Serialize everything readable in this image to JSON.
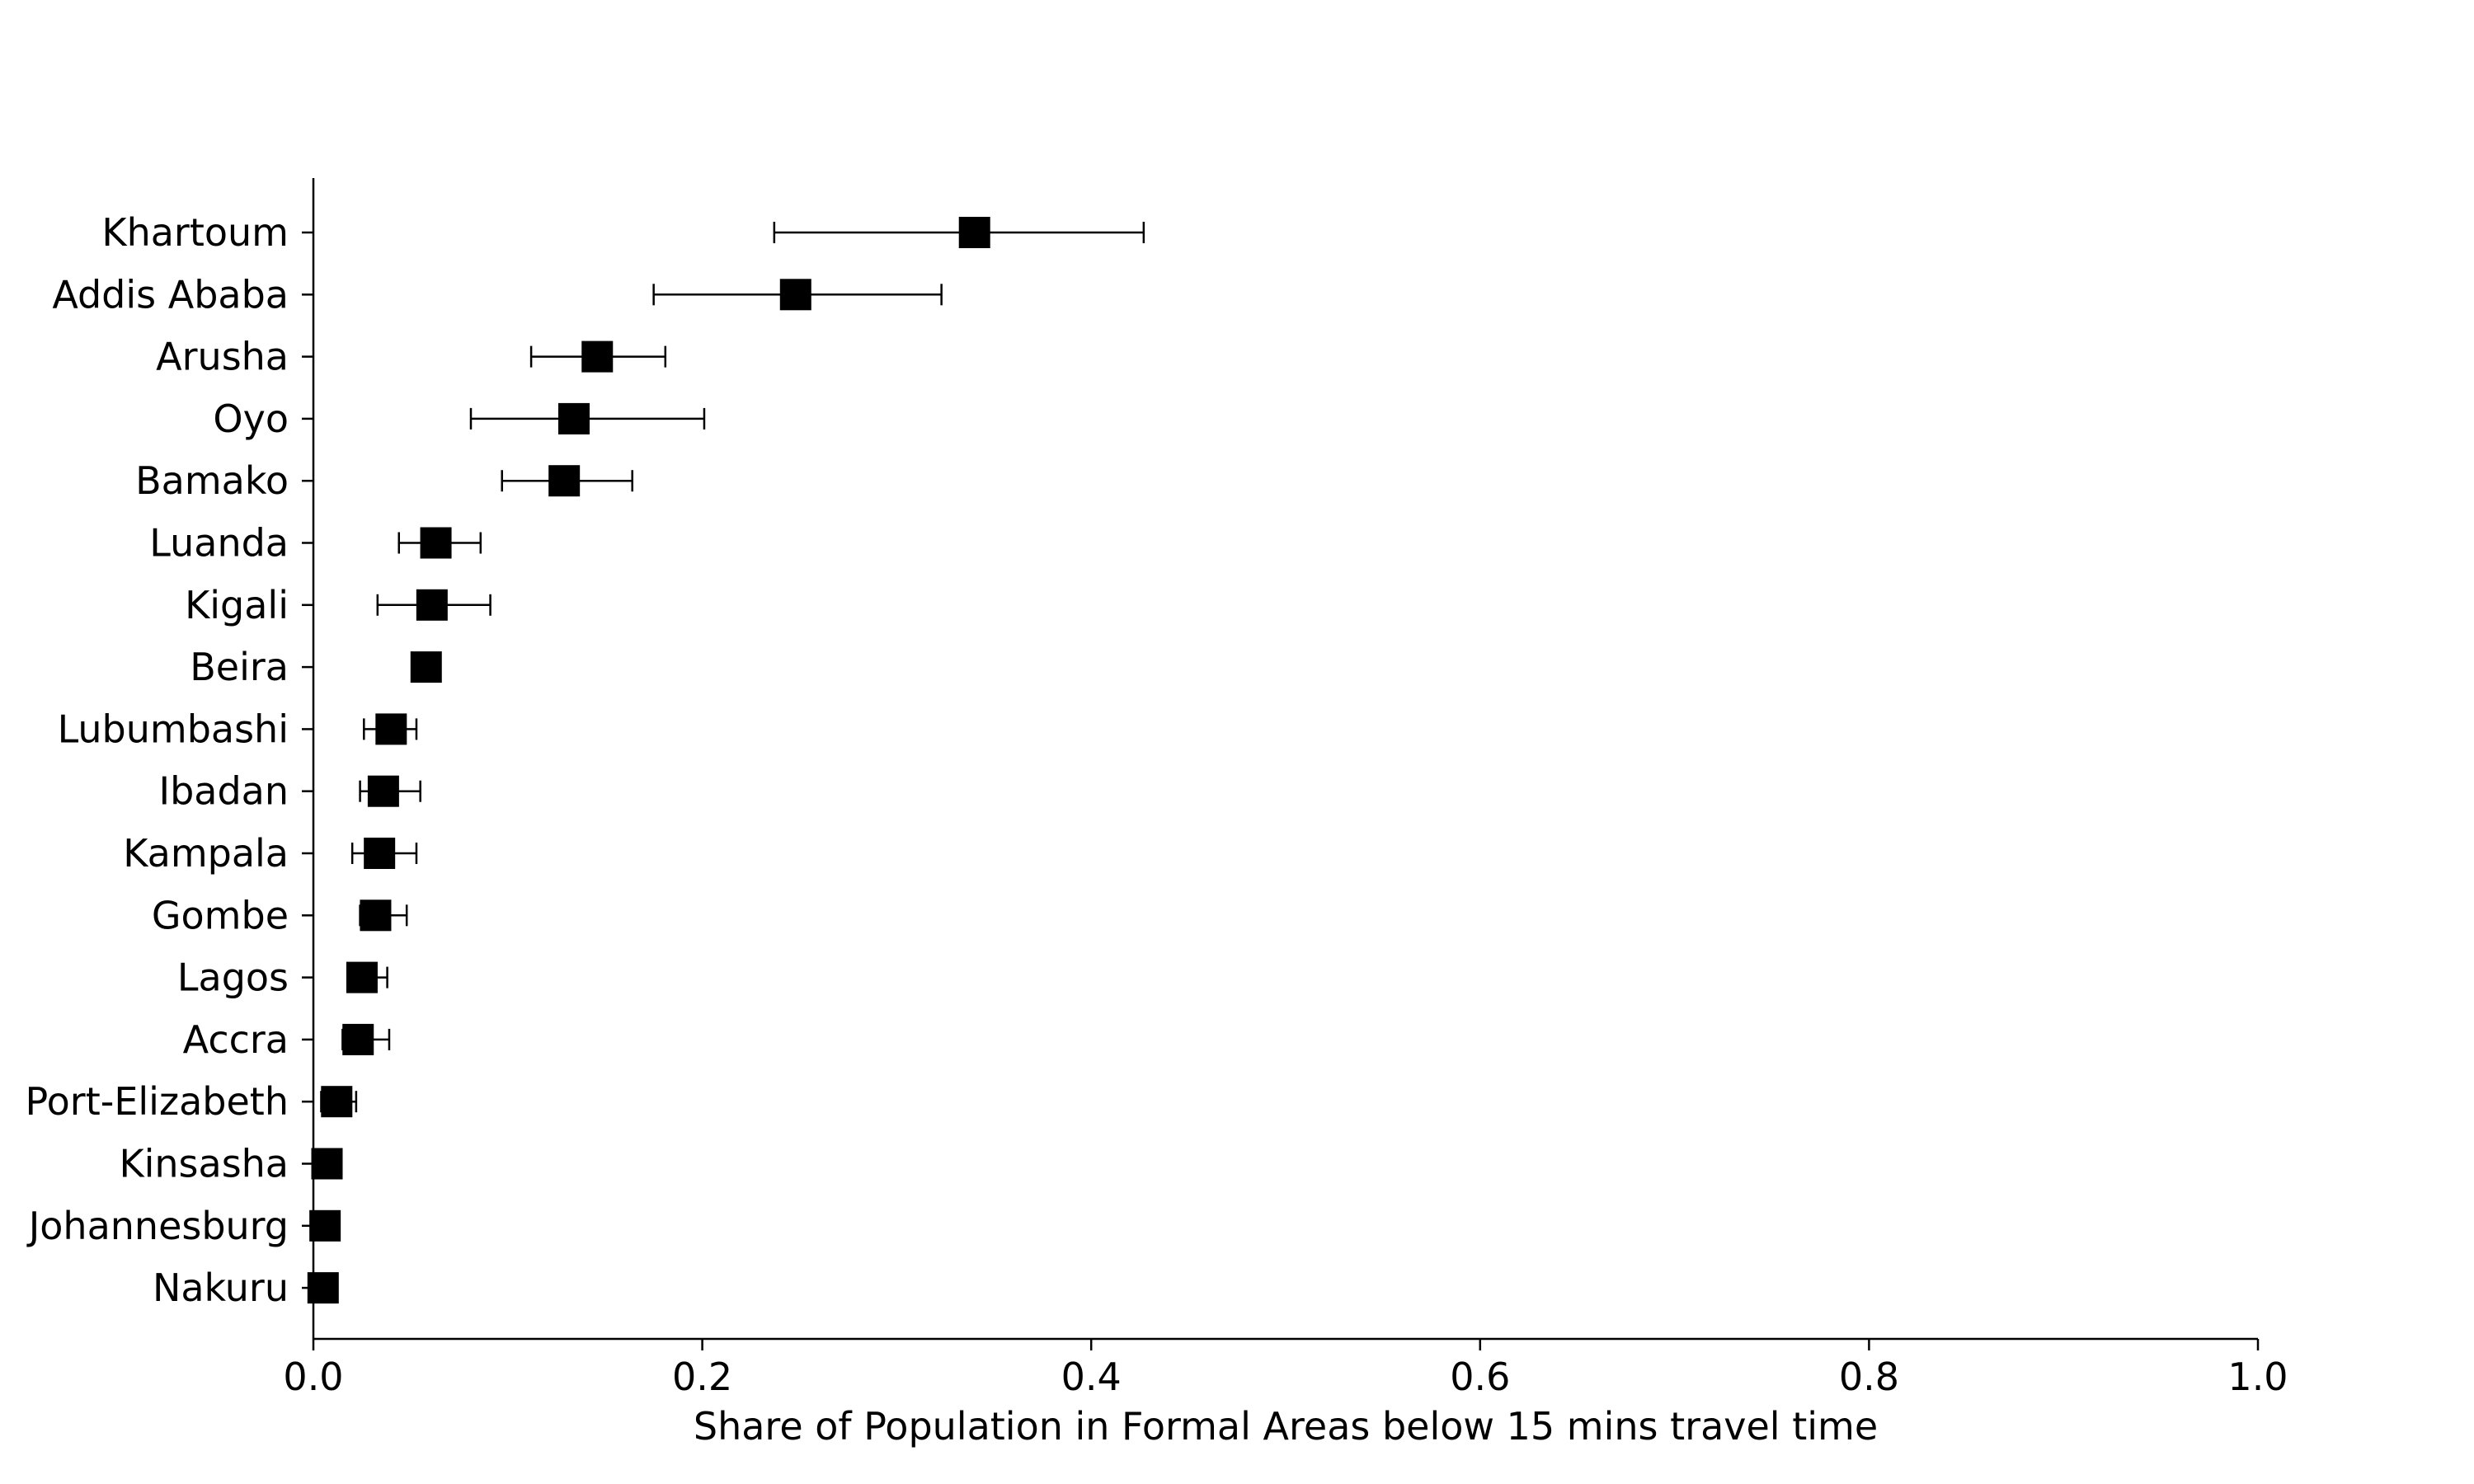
{
  "chart_data": {
    "type": "scatter",
    "orientation": "horizontal",
    "title": "",
    "xlabel": "Share of Population in Formal Areas below 15 mins travel time",
    "ylabel": "",
    "xlim": [
      0.0,
      1.0
    ],
    "xticks": [
      0.0,
      0.2,
      0.4,
      0.6,
      0.8,
      1.0
    ],
    "xtick_labels": [
      "0.0",
      "0.2",
      "0.4",
      "0.6",
      "0.8",
      "1.0"
    ],
    "grid": false,
    "marker": "square",
    "marker_color": "#000000",
    "error_bar_color": "#000000",
    "categories": [
      "Khartoum",
      "Addis Ababa",
      "Arusha",
      "Oyo",
      "Bamako",
      "Luanda",
      "Kigali",
      "Beira",
      "Lubumbashi",
      "Ibadan",
      "Kampala",
      "Gombe",
      "Lagos",
      "Accra",
      "Port-Elizabeth",
      "Kinsasha",
      "Johannesburg",
      "Nakuru"
    ],
    "values": [
      0.34,
      0.248,
      0.146,
      0.134,
      0.129,
      0.063,
      0.061,
      0.058,
      0.04,
      0.036,
      0.034,
      0.032,
      0.025,
      0.023,
      0.012,
      0.007,
      0.006,
      0.005
    ],
    "lower": [
      0.237,
      0.175,
      0.112,
      0.081,
      0.097,
      0.044,
      0.033,
      0.052,
      0.026,
      0.024,
      0.02,
      0.024,
      0.018,
      0.015,
      0.004,
      0.002,
      0.001,
      0.001
    ],
    "upper": [
      0.427,
      0.323,
      0.181,
      0.201,
      0.164,
      0.086,
      0.091,
      0.064,
      0.053,
      0.055,
      0.053,
      0.048,
      0.038,
      0.039,
      0.022,
      0.012,
      0.011,
      0.01
    ]
  }
}
